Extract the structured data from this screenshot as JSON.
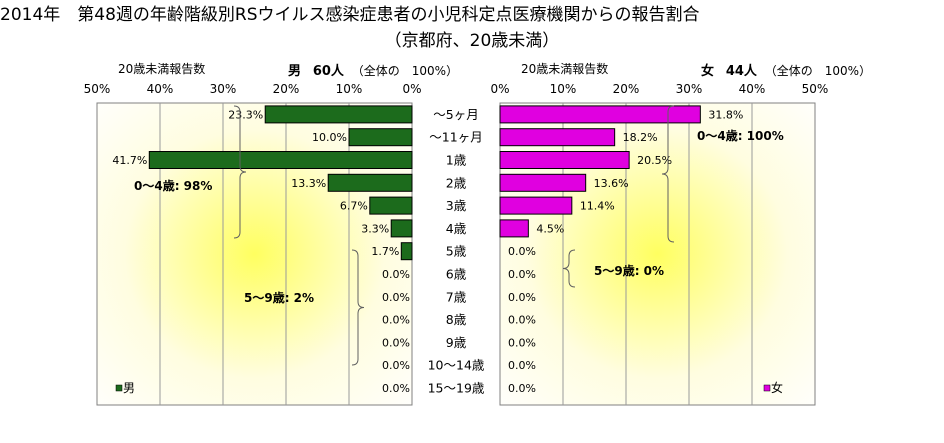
{
  "title": "2014年　第48週の年齢階級別RSウイルス感染症患者の小児科定点医療機関からの報告割合",
  "subtitle": "（京都府、20歳未満）",
  "left_panel": {
    "header_label": "20歳未満報告数",
    "sex": "男",
    "count": "60人",
    "total_note": "（全体の　100%）",
    "legend": "男",
    "color": "#1c6b1c"
  },
  "right_panel": {
    "header_label": "20歳未満報告数",
    "sex": "女",
    "count": "44人",
    "total_note": "（全体の　100%）",
    "legend": "女",
    "color": "#e000e0"
  },
  "braces": {
    "left_upper": "0～4歳: 98%",
    "left_lower": "5～9歳: 2%",
    "right_upper": "0～4歳: 100%",
    "right_lower": "5～9歳: 0%"
  },
  "chart_data": {
    "type": "bar",
    "orientation": "horizontal",
    "categories": [
      "～5ヶ月",
      "～11ヶ月",
      "1歳",
      "2歳",
      "3歳",
      "4歳",
      "5歳",
      "6歳",
      "7歳",
      "8歳",
      "9歳",
      "10～14歳",
      "15～19歳"
    ],
    "xlim": [
      0,
      50
    ],
    "ticks": [
      "0%",
      "10%",
      "20%",
      "30%",
      "40%",
      "50%"
    ],
    "series": [
      {
        "name": "男",
        "values": [
          23.3,
          10.0,
          41.7,
          13.3,
          6.7,
          3.3,
          1.7,
          0.0,
          0.0,
          0.0,
          0.0,
          0.0,
          0.0
        ],
        "labels": [
          "23.3%",
          "10.0%",
          "41.7%",
          "13.3%",
          "6.7%",
          "3.3%",
          "1.7%",
          "0.0%",
          "0.0%",
          "0.0%",
          "0.0%",
          "0.0%",
          "0.0%"
        ]
      },
      {
        "name": "女",
        "values": [
          31.8,
          18.2,
          20.5,
          13.6,
          11.4,
          4.5,
          0.0,
          0.0,
          0.0,
          0.0,
          0.0,
          0.0,
          0.0
        ],
        "labels": [
          "31.8%",
          "18.2%",
          "20.5%",
          "13.6%",
          "11.4%",
          "4.5%",
          "0.0%",
          "0.0%",
          "0.0%",
          "0.0%",
          "0.0%",
          "0.0%",
          "0.0%"
        ]
      }
    ]
  }
}
